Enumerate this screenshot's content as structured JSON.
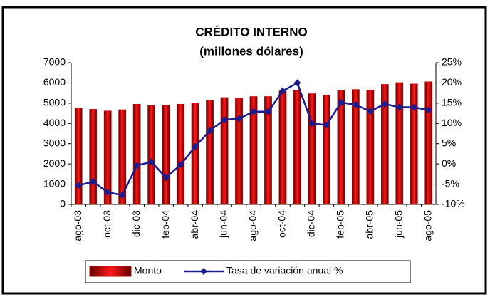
{
  "chart_data": {
    "type": "bar-line",
    "title": "CRÉDITO INTERNO",
    "subtitle": "(millones dólares)",
    "categories": [
      "ago-03",
      null,
      "oct-03",
      null,
      "dic-03",
      null,
      "feb-04",
      null,
      "abr-04",
      null,
      "jun-04",
      null,
      "ago-04",
      null,
      "oct-04",
      null,
      "dic-04",
      null,
      "feb-05",
      null,
      "abr-05",
      null,
      "jun-05",
      null,
      "ago-05"
    ],
    "series": [
      {
        "name": "Monto",
        "type": "bar",
        "color": "#c00000",
        "values": [
          4750,
          4700,
          4620,
          4680,
          4950,
          4900,
          4880,
          4950,
          5000,
          5150,
          5280,
          5230,
          5330,
          5330,
          5600,
          5620,
          5470,
          5400,
          5650,
          5680,
          5620,
          5930,
          6020,
          5950,
          6060
        ]
      },
      {
        "name": "Tasa de variación anual %",
        "type": "line",
        "axis": "y2",
        "color": "#1c1c8c",
        "values": [
          -5.3,
          -4.4,
          -7.0,
          -7.7,
          -0.4,
          0.5,
          -3.4,
          -0.2,
          4.3,
          8.2,
          10.9,
          11.2,
          12.9,
          12.9,
          18.0,
          20.0,
          10.0,
          9.6,
          15.2,
          14.6,
          13.0,
          14.8,
          14.0,
          14.0,
          13.3
        ]
      }
    ],
    "ylim": [
      0,
      7000
    ],
    "yticks": [
      0,
      1000,
      2000,
      3000,
      4000,
      5000,
      6000,
      7000
    ],
    "y2lim": [
      -10,
      25
    ],
    "y2ticks": [
      {
        "value": -10,
        "label": "-10%"
      },
      {
        "value": -5,
        "label": "-5%"
      },
      {
        "value": 0,
        "label": "0%"
      },
      {
        "value": 5,
        "label": "5%"
      },
      {
        "value": 10,
        "label": "10%"
      },
      {
        "value": 15,
        "label": "15%"
      },
      {
        "value": 20,
        "label": "20%"
      },
      {
        "value": 25,
        "label": "25%"
      }
    ],
    "grid": false,
    "legend": "bottom"
  }
}
